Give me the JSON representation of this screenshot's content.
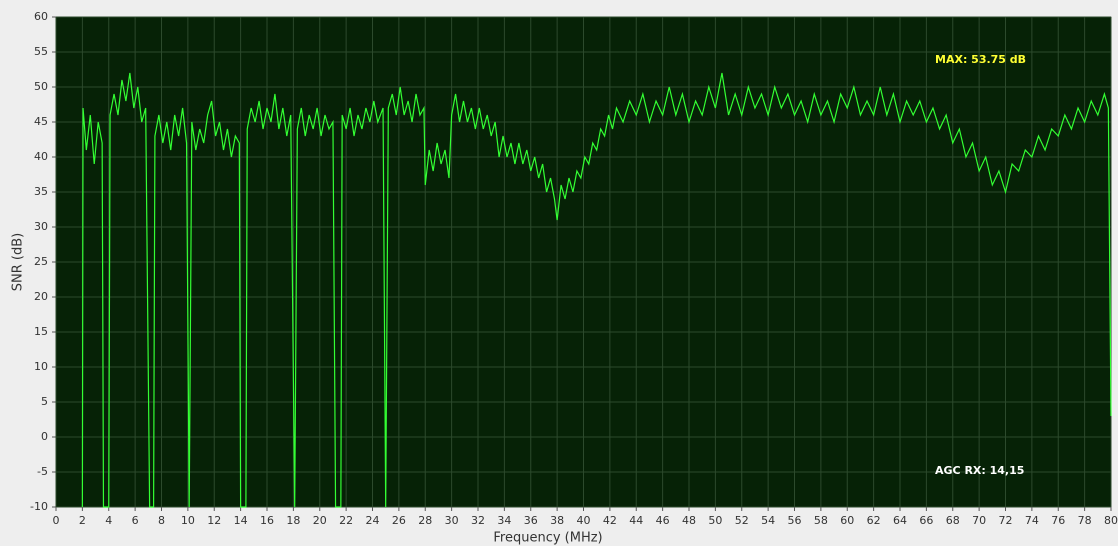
{
  "chart_data": {
    "type": "line",
    "x_label": "Frequency (MHz)",
    "y_label": "SNR (dB)",
    "annotations": [
      {
        "text": "MAX: 53.75 dB",
        "color": "#ffff33"
      },
      {
        "text": "AGC RX: 14,15",
        "color": "#ffffff"
      }
    ],
    "xlim": [
      0,
      80
    ],
    "ylim": [
      -10,
      60
    ],
    "xticks": [
      0,
      2,
      4,
      6,
      8,
      10,
      12,
      14,
      16,
      18,
      20,
      22,
      24,
      26,
      28,
      30,
      32,
      34,
      36,
      38,
      40,
      42,
      44,
      46,
      48,
      50,
      52,
      54,
      56,
      58,
      60,
      62,
      64,
      66,
      68,
      70,
      72,
      74,
      76,
      78,
      80
    ],
    "yticks": [
      -10,
      -5,
      0,
      5,
      10,
      15,
      20,
      25,
      30,
      35,
      40,
      45,
      50,
      55,
      60
    ],
    "grid": true,
    "background": "#062206",
    "grid_color": "#2c4a2c",
    "series": [
      {
        "name": "SNR",
        "color": "#33ff33",
        "x": [
          2.0,
          2.05,
          2.3,
          2.6,
          2.9,
          3.2,
          3.5,
          3.6,
          4.0,
          4.1,
          4.4,
          4.7,
          5.0,
          5.3,
          5.6,
          5.9,
          6.2,
          6.5,
          6.8,
          7.1,
          7.4,
          7.5,
          7.8,
          8.1,
          8.4,
          8.7,
          9.0,
          9.3,
          9.6,
          9.9,
          10.1,
          10.3,
          10.6,
          10.9,
          11.2,
          11.5,
          11.8,
          12.1,
          12.4,
          12.7,
          13.0,
          13.3,
          13.6,
          13.9,
          14.0,
          14.4,
          14.5,
          14.8,
          15.1,
          15.4,
          15.7,
          16.0,
          16.3,
          16.6,
          16.9,
          17.2,
          17.5,
          17.8,
          18.1,
          18.3,
          18.6,
          18.9,
          19.2,
          19.5,
          19.8,
          20.1,
          20.4,
          20.7,
          21.0,
          21.2,
          21.6,
          21.7,
          22.0,
          22.3,
          22.6,
          22.9,
          23.2,
          23.5,
          23.8,
          24.1,
          24.4,
          24.8,
          25.0,
          25.2,
          25.5,
          25.8,
          26.1,
          26.4,
          26.7,
          27.0,
          27.3,
          27.6,
          27.9,
          28.0,
          28.3,
          28.6,
          28.9,
          29.2,
          29.5,
          29.8,
          30.0,
          30.3,
          30.6,
          30.9,
          31.2,
          31.5,
          31.8,
          32.1,
          32.4,
          32.7,
          33.0,
          33.3,
          33.6,
          33.9,
          34.2,
          34.5,
          34.8,
          35.1,
          35.4,
          35.7,
          36.0,
          36.3,
          36.6,
          36.9,
          37.2,
          37.5,
          37.8,
          38.0,
          38.3,
          38.6,
          38.9,
          39.2,
          39.5,
          39.8,
          40.1,
          40.4,
          40.7,
          41.0,
          41.3,
          41.6,
          41.9,
          42.2,
          42.5,
          43,
          43.5,
          44,
          44.5,
          45,
          45.5,
          46,
          46.5,
          47,
          47.5,
          48,
          48.5,
          49,
          49.5,
          50,
          50.5,
          51,
          51.5,
          52,
          52.5,
          53,
          53.5,
          54,
          54.5,
          55,
          55.5,
          56,
          56.5,
          57,
          57.5,
          58,
          58.5,
          59,
          59.5,
          60,
          60.5,
          61,
          61.5,
          62,
          62.5,
          63,
          63.5,
          64,
          64.5,
          65,
          65.5,
          66,
          66.5,
          67,
          67.5,
          68,
          68.5,
          69,
          69.5,
          70,
          70.5,
          71,
          71.5,
          72,
          72.5,
          73,
          73.5,
          74,
          74.5,
          75,
          75.5,
          76,
          76.5,
          77,
          77.5,
          78,
          78.5,
          79,
          79.5,
          79.8,
          80
        ],
        "values": [
          -10,
          47,
          41,
          46,
          39,
          45,
          42,
          -10,
          -10,
          46,
          49,
          46,
          51,
          48,
          52,
          47,
          50,
          45,
          47,
          -10,
          -10,
          43,
          46,
          42,
          45,
          41,
          46,
          43,
          47,
          42,
          -10,
          45,
          41,
          44,
          42,
          46,
          48,
          43,
          45,
          41,
          44,
          40,
          43,
          42,
          -10,
          -10,
          44,
          47,
          45,
          48,
          44,
          47,
          45,
          49,
          44,
          47,
          43,
          46,
          -10,
          44,
          47,
          43,
          46,
          44,
          47,
          43,
          46,
          44,
          45,
          -10,
          -10,
          46,
          44,
          47,
          43,
          46,
          44,
          47,
          45,
          48,
          45,
          47,
          -10,
          47,
          49,
          46,
          50,
          46,
          48,
          45,
          49,
          46,
          47,
          36,
          41,
          38,
          42,
          39,
          41,
          37,
          46,
          49,
          45,
          48,
          45,
          47,
          44,
          47,
          44,
          46,
          43,
          45,
          40,
          43,
          40,
          42,
          39,
          42,
          39,
          41,
          38,
          40,
          37,
          39,
          35,
          37,
          34,
          31,
          36,
          34,
          37,
          35,
          38,
          37,
          40,
          39,
          42,
          41,
          44,
          43,
          46,
          44,
          47,
          45,
          48,
          46,
          49,
          45,
          48,
          46,
          50,
          46,
          49,
          45,
          48,
          46,
          50,
          47,
          52,
          46,
          49,
          46,
          50,
          47,
          49,
          46,
          50,
          47,
          49,
          46,
          48,
          45,
          49,
          46,
          48,
          45,
          49,
          47,
          50,
          46,
          48,
          46,
          50,
          46,
          49,
          45,
          48,
          46,
          48,
          45,
          47,
          44,
          46,
          42,
          44,
          40,
          42,
          38,
          40,
          36,
          38,
          35,
          39,
          38,
          41,
          40,
          43,
          41,
          44,
          43,
          46,
          44,
          47,
          45,
          48,
          46,
          49,
          47,
          3
        ]
      }
    ]
  }
}
